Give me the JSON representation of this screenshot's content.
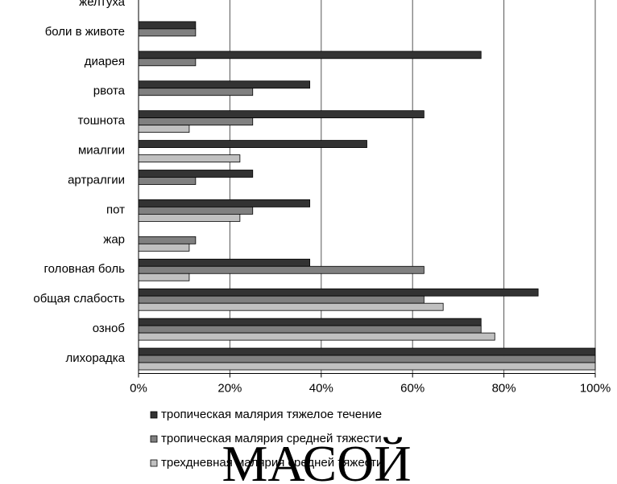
{
  "chart_data": {
    "type": "bar",
    "orientation": "horizontal",
    "categories": [
      "желтуха",
      "боли в животе",
      "диарея",
      "рвота",
      "тошнота",
      "миалгии",
      "артралгии",
      "пот",
      "жар",
      "головная боль",
      "общая слабость",
      "озноб",
      "лихорадка"
    ],
    "series": [
      {
        "name": "тропическая малярия тяжелое течение",
        "color": "#333333",
        "values": [
          0,
          12.5,
          75,
          37.5,
          62.5,
          50,
          25,
          37.5,
          0,
          37.5,
          87.5,
          75,
          100
        ]
      },
      {
        "name": "тропическая малярия средней тяжести",
        "color": "#808080",
        "values": [
          0,
          12.5,
          12.5,
          25,
          25,
          0,
          12.5,
          25,
          12.5,
          62.5,
          62.5,
          75,
          100
        ]
      },
      {
        "name": "трехдневная малярия средней тяжести",
        "color": "#c0c0c0",
        "values": [
          0,
          0,
          0,
          0,
          11.1,
          22.2,
          0,
          22.2,
          11.1,
          11.1,
          66.7,
          78,
          100
        ]
      }
    ],
    "xlim": [
      0,
      100
    ],
    "xticks": [
      {
        "value": 0,
        "label": "0%"
      },
      {
        "value": 20,
        "label": "20%"
      },
      {
        "value": 40,
        "label": "40%"
      },
      {
        "value": 60,
        "label": "60%"
      },
      {
        "value": 80,
        "label": "80%"
      },
      {
        "value": 100,
        "label": "100%"
      }
    ],
    "grid": true,
    "watermark": "МАСОЙ"
  }
}
